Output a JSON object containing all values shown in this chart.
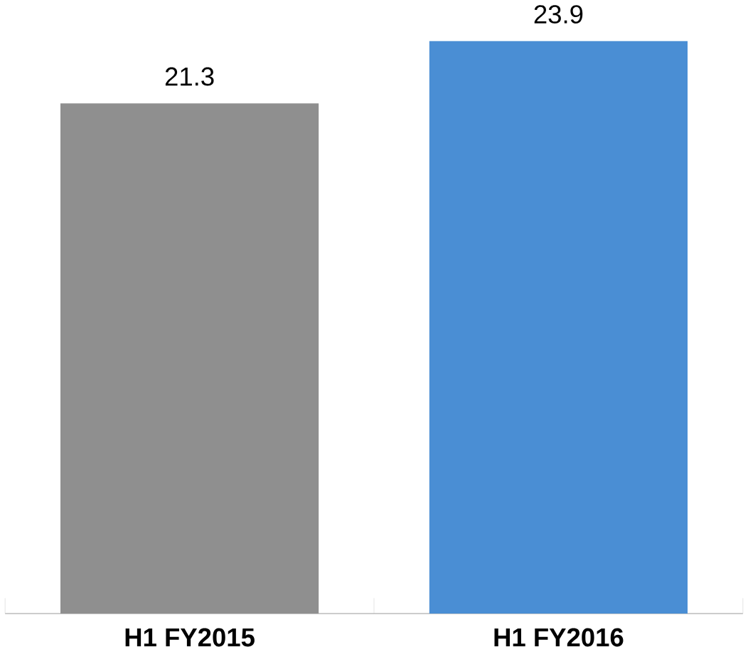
{
  "chart_data": {
    "type": "bar",
    "categories": [
      "H1 FY2015",
      "H1 FY2016"
    ],
    "values": [
      21.3,
      23.9
    ],
    "colors": [
      "#8f8f8f",
      "#4a8ed4"
    ],
    "data_labels": true,
    "tick_labels": "x"
  }
}
